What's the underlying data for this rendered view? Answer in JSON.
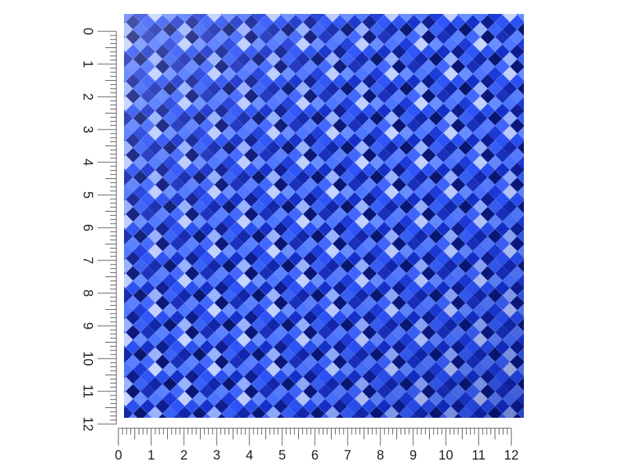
{
  "rulers": {
    "vertical": {
      "labels": [
        "0",
        "1",
        "2",
        "3",
        "4",
        "5",
        "6",
        "7",
        "8",
        "9",
        "10",
        "11",
        "12"
      ]
    },
    "horizontal": {
      "labels": [
        "0",
        "1",
        "2",
        "3",
        "4",
        "5",
        "6",
        "7",
        "8",
        "9",
        "10",
        "11",
        "12"
      ]
    }
  }
}
